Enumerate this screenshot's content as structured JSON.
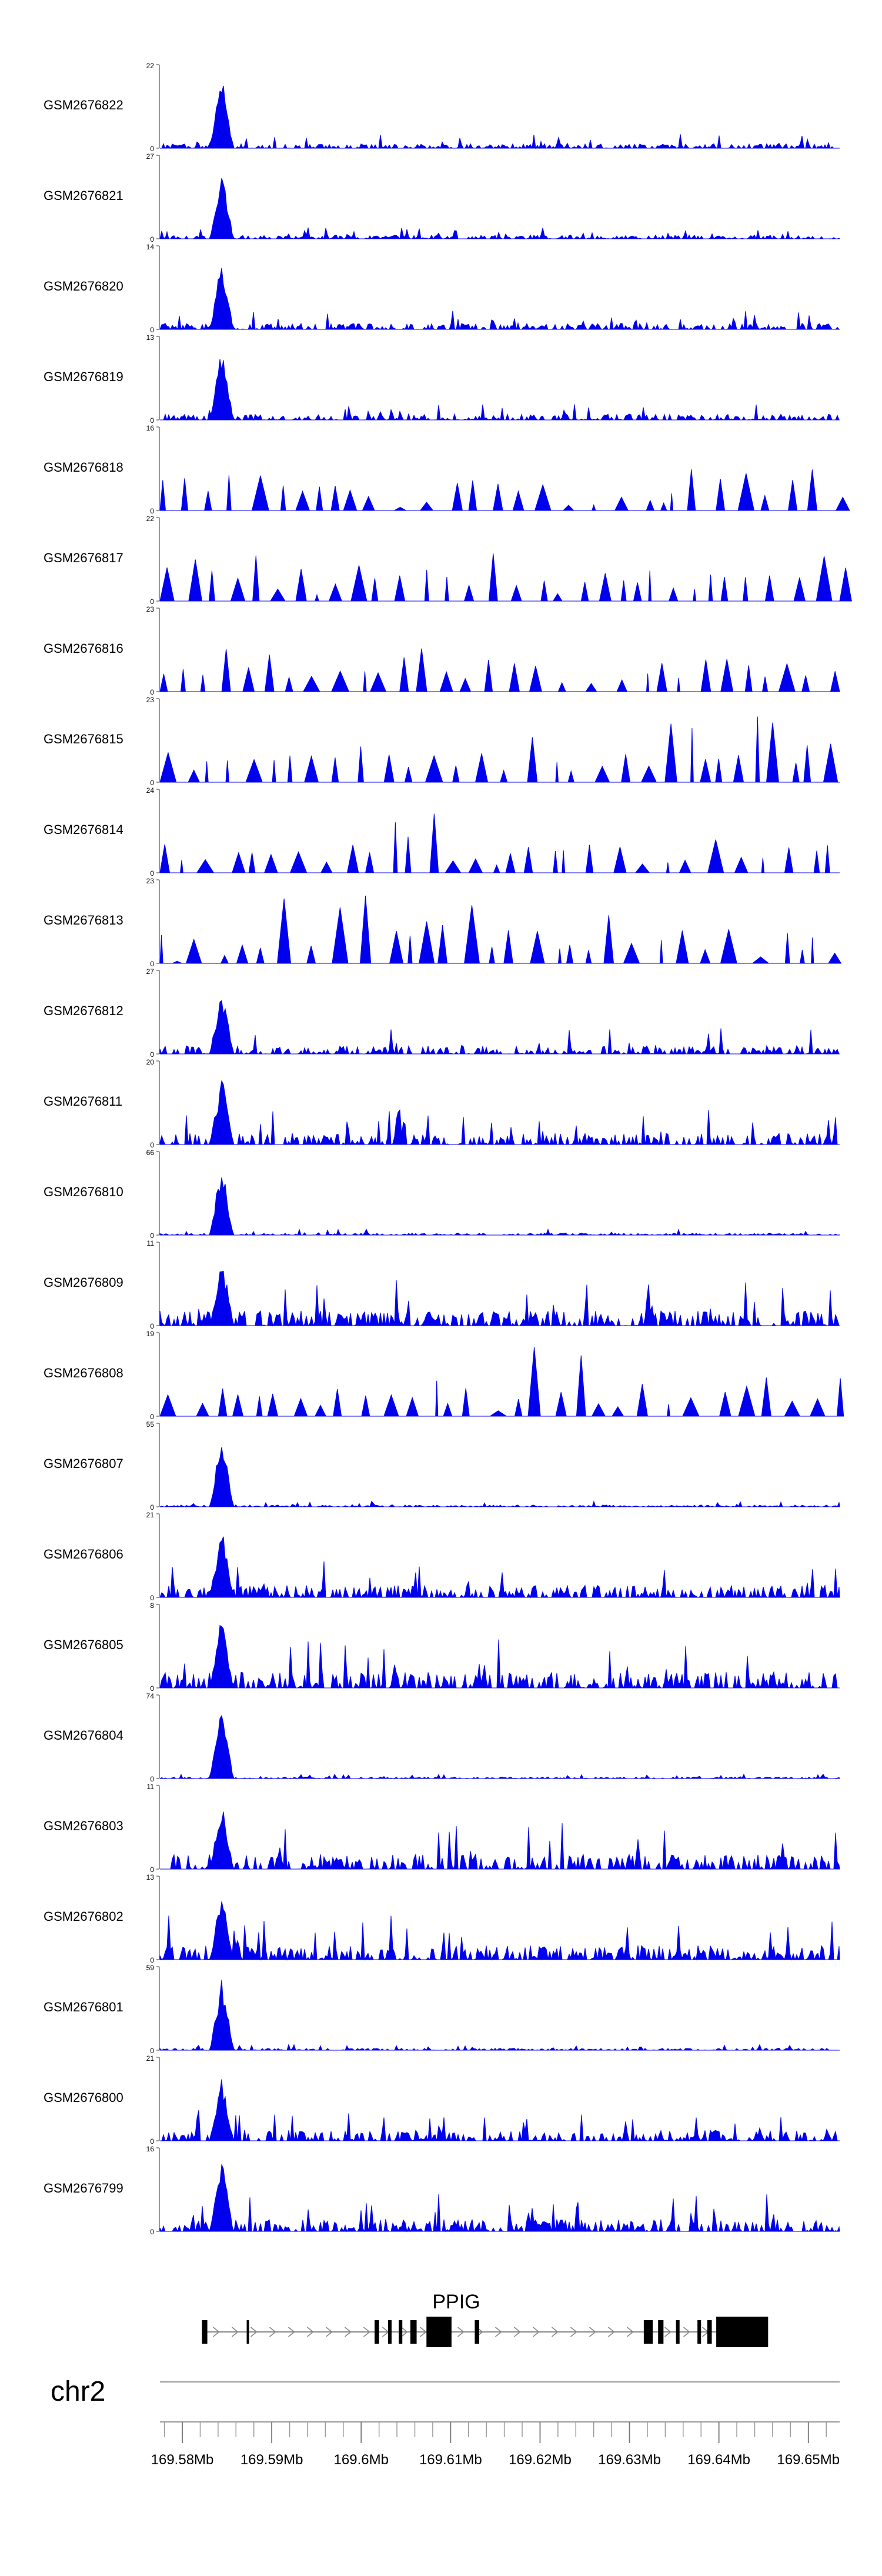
{
  "chart_data": {
    "type": "area",
    "chromosome": "chr2",
    "gene": "PPIG",
    "xlim": [
      169.5775,
      169.6535
    ],
    "x_ticks": [
      "169.58Mb",
      "169.59Mb",
      "169.6Mb",
      "169.61Mb",
      "169.62Mb",
      "169.63Mb",
      "169.64Mb",
      "169.65Mb"
    ],
    "x_tick_values": [
      169.58,
      169.59,
      169.6,
      169.61,
      169.62,
      169.63,
      169.64,
      169.65
    ],
    "series_color": "#0000ee",
    "tracks": [
      {
        "name": "GSM2676822",
        "ymax": 22,
        "peak": 0.9,
        "bg": 0.12,
        "pattern": "peak",
        "seed": 22
      },
      {
        "name": "GSM2676821",
        "ymax": 27,
        "peak": 0.85,
        "bg": 0.1,
        "pattern": "peak",
        "seed": 21
      },
      {
        "name": "GSM2676820",
        "ymax": 14,
        "peak": 0.85,
        "bg": 0.16,
        "pattern": "peak",
        "seed": 20
      },
      {
        "name": "GSM2676819",
        "ymax": 13,
        "peak": 0.88,
        "bg": 0.16,
        "pattern": "peak",
        "seed": 19
      },
      {
        "name": "GSM2676818",
        "ymax": 16,
        "peak": 0.45,
        "bg": 0.55,
        "pattern": "sparse",
        "seed": 18
      },
      {
        "name": "GSM2676817",
        "ymax": 22,
        "peak": 0.45,
        "bg": 0.6,
        "pattern": "sparse",
        "seed": 17
      },
      {
        "name": "GSM2676816",
        "ymax": 23,
        "peak": 0.45,
        "bg": 0.55,
        "pattern": "sparse",
        "seed": 16
      },
      {
        "name": "GSM2676815",
        "ymax": 23,
        "peak": 0.4,
        "bg": 0.6,
        "pattern": "sparse",
        "seed": 15
      },
      {
        "name": "GSM2676814",
        "ymax": 24,
        "peak": 0.4,
        "bg": 0.55,
        "pattern": "sparse",
        "seed": 14
      },
      {
        "name": "GSM2676813",
        "ymax": 23,
        "peak": 0.4,
        "bg": 0.6,
        "pattern": "sparse",
        "seed": 13
      },
      {
        "name": "GSM2676812",
        "ymax": 27,
        "peak": 0.85,
        "bg": 0.22,
        "pattern": "peak",
        "seed": 12
      },
      {
        "name": "GSM2676811",
        "ymax": 20,
        "peak": 0.85,
        "bg": 0.3,
        "pattern": "peak",
        "seed": 11
      },
      {
        "name": "GSM2676810",
        "ymax": 66,
        "peak": 0.9,
        "bg": 0.05,
        "pattern": "peak",
        "seed": 10
      },
      {
        "name": "GSM2676809",
        "ymax": 11,
        "peak": 0.9,
        "bg": 0.4,
        "pattern": "peak",
        "seed": 9
      },
      {
        "name": "GSM2676808",
        "ymax": 19,
        "peak": 0.55,
        "bg": 0.6,
        "pattern": "sparse",
        "seed": 8
      },
      {
        "name": "GSM2676807",
        "ymax": 55,
        "peak": 0.92,
        "bg": 0.05,
        "pattern": "peak",
        "seed": 7
      },
      {
        "name": "GSM2676806",
        "ymax": 21,
        "peak": 0.9,
        "bg": 0.32,
        "pattern": "peak",
        "seed": 6
      },
      {
        "name": "GSM2676805",
        "ymax": 8,
        "peak": 0.88,
        "bg": 0.42,
        "pattern": "peak",
        "seed": 5
      },
      {
        "name": "GSM2676804",
        "ymax": 74,
        "peak": 0.92,
        "bg": 0.04,
        "pattern": "peak",
        "seed": 4
      },
      {
        "name": "GSM2676803",
        "ymax": 11,
        "peak": 0.85,
        "bg": 0.4,
        "pattern": "peak",
        "seed": 3
      },
      {
        "name": "GSM2676802",
        "ymax": 13,
        "peak": 0.85,
        "bg": 0.38,
        "pattern": "peak",
        "seed": 2
      },
      {
        "name": "GSM2676801",
        "ymax": 59,
        "peak": 0.92,
        "bg": 0.05,
        "pattern": "peak",
        "seed": 1
      },
      {
        "name": "GSM2676800",
        "ymax": 21,
        "peak": 0.85,
        "bg": 0.28,
        "pattern": "peak",
        "seed": 100
      },
      {
        "name": "GSM2676799",
        "ymax": 16,
        "peak": 0.9,
        "bg": 0.32,
        "pattern": "peak",
        "seed": 99
      }
    ],
    "gene_model": {
      "name": "PPIG",
      "start": 169.5822,
      "end": 169.6455,
      "exons": [
        [
          169.5822,
          169.5828
        ],
        [
          169.5872,
          169.5874
        ],
        [
          169.6015,
          169.602
        ],
        [
          169.603,
          169.6034
        ],
        [
          169.6042,
          169.6046
        ],
        [
          169.6055,
          169.6062
        ],
        [
          169.6073,
          169.6101
        ],
        [
          169.6127,
          169.6132
        ],
        [
          169.6316,
          169.6326
        ],
        [
          169.6332,
          169.6338
        ],
        [
          169.6352,
          169.6356
        ],
        [
          169.6376,
          169.638
        ],
        [
          169.6387,
          169.6392
        ],
        [
          169.6397,
          169.6455
        ]
      ],
      "tall_exons": [
        [
          169.6073,
          169.6101
        ],
        [
          169.6397,
          169.6455
        ]
      ]
    }
  }
}
